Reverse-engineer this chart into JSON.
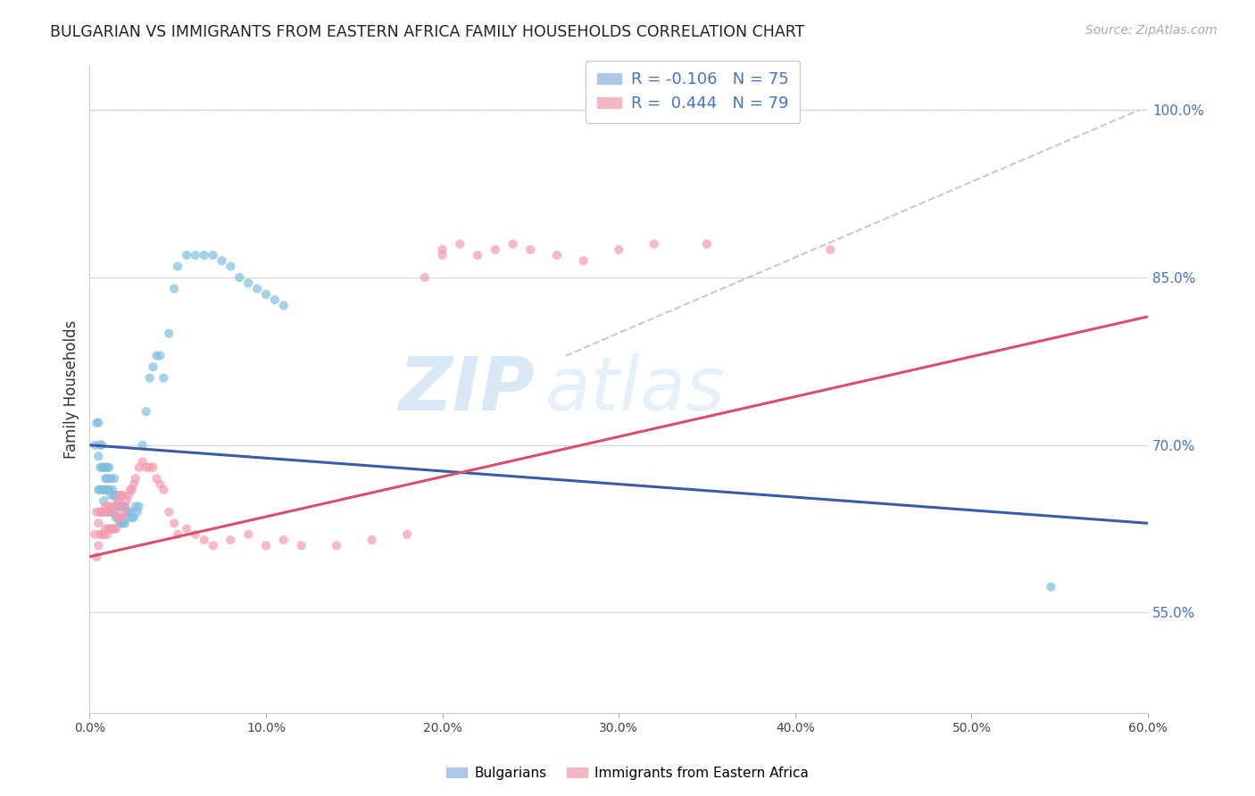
{
  "title": "BULGARIAN VS IMMIGRANTS FROM EASTERN AFRICA FAMILY HOUSEHOLDS CORRELATION CHART",
  "source": "Source: ZipAtlas.com",
  "ylabel": "Family Households",
  "xlim": [
    0.0,
    0.6
  ],
  "ylim": [
    0.46,
    1.04
  ],
  "right_yticks": [
    0.55,
    0.7,
    0.85,
    1.0
  ],
  "right_yticklabels": [
    "55.0%",
    "70.0%",
    "85.0%",
    "100.0%"
  ],
  "grid_yticks": [
    0.55,
    0.7,
    0.85,
    1.0
  ],
  "xticks": [
    0.0,
    0.1,
    0.2,
    0.3,
    0.4,
    0.5,
    0.6
  ],
  "blue_color": "#7fbfde",
  "pink_color": "#f49ab0",
  "blue_line_color": "#3a5ca8",
  "pink_line_color": "#d94f6a",
  "dashed_line_color": "#c8c8c8",
  "watermark_zip": "ZIP",
  "watermark_atlas": "atlas",
  "blue_line": {
    "x0": 0.0,
    "y0": 0.7,
    "x1": 0.6,
    "y1": 0.63
  },
  "pink_line": {
    "x0": 0.0,
    "y0": 0.6,
    "x1": 0.6,
    "y1": 0.815
  },
  "dashed_line": {
    "x0": 0.27,
    "y0": 0.78,
    "x1": 0.595,
    "y1": 1.0
  },
  "blue_scatter_x": [
    0.003,
    0.004,
    0.005,
    0.005,
    0.005,
    0.006,
    0.006,
    0.006,
    0.007,
    0.007,
    0.007,
    0.008,
    0.008,
    0.008,
    0.009,
    0.009,
    0.009,
    0.01,
    0.01,
    0.01,
    0.01,
    0.011,
    0.011,
    0.011,
    0.012,
    0.012,
    0.012,
    0.013,
    0.013,
    0.014,
    0.014,
    0.014,
    0.015,
    0.015,
    0.016,
    0.016,
    0.017,
    0.017,
    0.018,
    0.018,
    0.019,
    0.019,
    0.02,
    0.02,
    0.021,
    0.022,
    0.023,
    0.024,
    0.025,
    0.026,
    0.027,
    0.028,
    0.03,
    0.032,
    0.034,
    0.036,
    0.038,
    0.04,
    0.042,
    0.045,
    0.048,
    0.05,
    0.055,
    0.06,
    0.065,
    0.07,
    0.075,
    0.08,
    0.085,
    0.09,
    0.095,
    0.1,
    0.105,
    0.11,
    0.545
  ],
  "blue_scatter_y": [
    0.7,
    0.72,
    0.66,
    0.69,
    0.72,
    0.66,
    0.68,
    0.7,
    0.66,
    0.68,
    0.7,
    0.65,
    0.66,
    0.68,
    0.66,
    0.67,
    0.68,
    0.64,
    0.66,
    0.67,
    0.68,
    0.64,
    0.66,
    0.68,
    0.64,
    0.655,
    0.67,
    0.64,
    0.66,
    0.64,
    0.655,
    0.67,
    0.635,
    0.655,
    0.635,
    0.65,
    0.63,
    0.645,
    0.63,
    0.645,
    0.63,
    0.645,
    0.63,
    0.645,
    0.635,
    0.64,
    0.64,
    0.635,
    0.635,
    0.645,
    0.64,
    0.645,
    0.7,
    0.73,
    0.76,
    0.77,
    0.78,
    0.78,
    0.76,
    0.8,
    0.84,
    0.86,
    0.87,
    0.87,
    0.87,
    0.87,
    0.865,
    0.86,
    0.85,
    0.845,
    0.84,
    0.835,
    0.83,
    0.825,
    0.573
  ],
  "pink_scatter_x": [
    0.003,
    0.004,
    0.004,
    0.005,
    0.005,
    0.006,
    0.006,
    0.007,
    0.007,
    0.008,
    0.008,
    0.009,
    0.009,
    0.01,
    0.01,
    0.011,
    0.011,
    0.012,
    0.012,
    0.013,
    0.013,
    0.014,
    0.014,
    0.015,
    0.015,
    0.016,
    0.016,
    0.017,
    0.017,
    0.018,
    0.018,
    0.019,
    0.019,
    0.02,
    0.021,
    0.022,
    0.023,
    0.024,
    0.025,
    0.026,
    0.028,
    0.03,
    0.032,
    0.034,
    0.036,
    0.038,
    0.04,
    0.042,
    0.045,
    0.048,
    0.05,
    0.055,
    0.06,
    0.065,
    0.07,
    0.08,
    0.09,
    0.1,
    0.11,
    0.12,
    0.14,
    0.16,
    0.18,
    0.19,
    0.2,
    0.2,
    0.21,
    0.22,
    0.23,
    0.24,
    0.25,
    0.265,
    0.28,
    0.3,
    0.32,
    0.35,
    0.42
  ],
  "pink_scatter_y": [
    0.62,
    0.6,
    0.64,
    0.61,
    0.63,
    0.62,
    0.64,
    0.62,
    0.64,
    0.62,
    0.64,
    0.625,
    0.645,
    0.62,
    0.64,
    0.625,
    0.645,
    0.625,
    0.645,
    0.625,
    0.64,
    0.625,
    0.645,
    0.625,
    0.645,
    0.635,
    0.65,
    0.635,
    0.655,
    0.635,
    0.655,
    0.64,
    0.655,
    0.645,
    0.65,
    0.655,
    0.66,
    0.66,
    0.665,
    0.67,
    0.68,
    0.685,
    0.68,
    0.68,
    0.68,
    0.67,
    0.665,
    0.66,
    0.64,
    0.63,
    0.62,
    0.625,
    0.62,
    0.615,
    0.61,
    0.615,
    0.62,
    0.61,
    0.615,
    0.61,
    0.61,
    0.615,
    0.62,
    0.85,
    0.87,
    0.875,
    0.88,
    0.87,
    0.875,
    0.88,
    0.875,
    0.87,
    0.865,
    0.875,
    0.88,
    0.88,
    0.875
  ]
}
